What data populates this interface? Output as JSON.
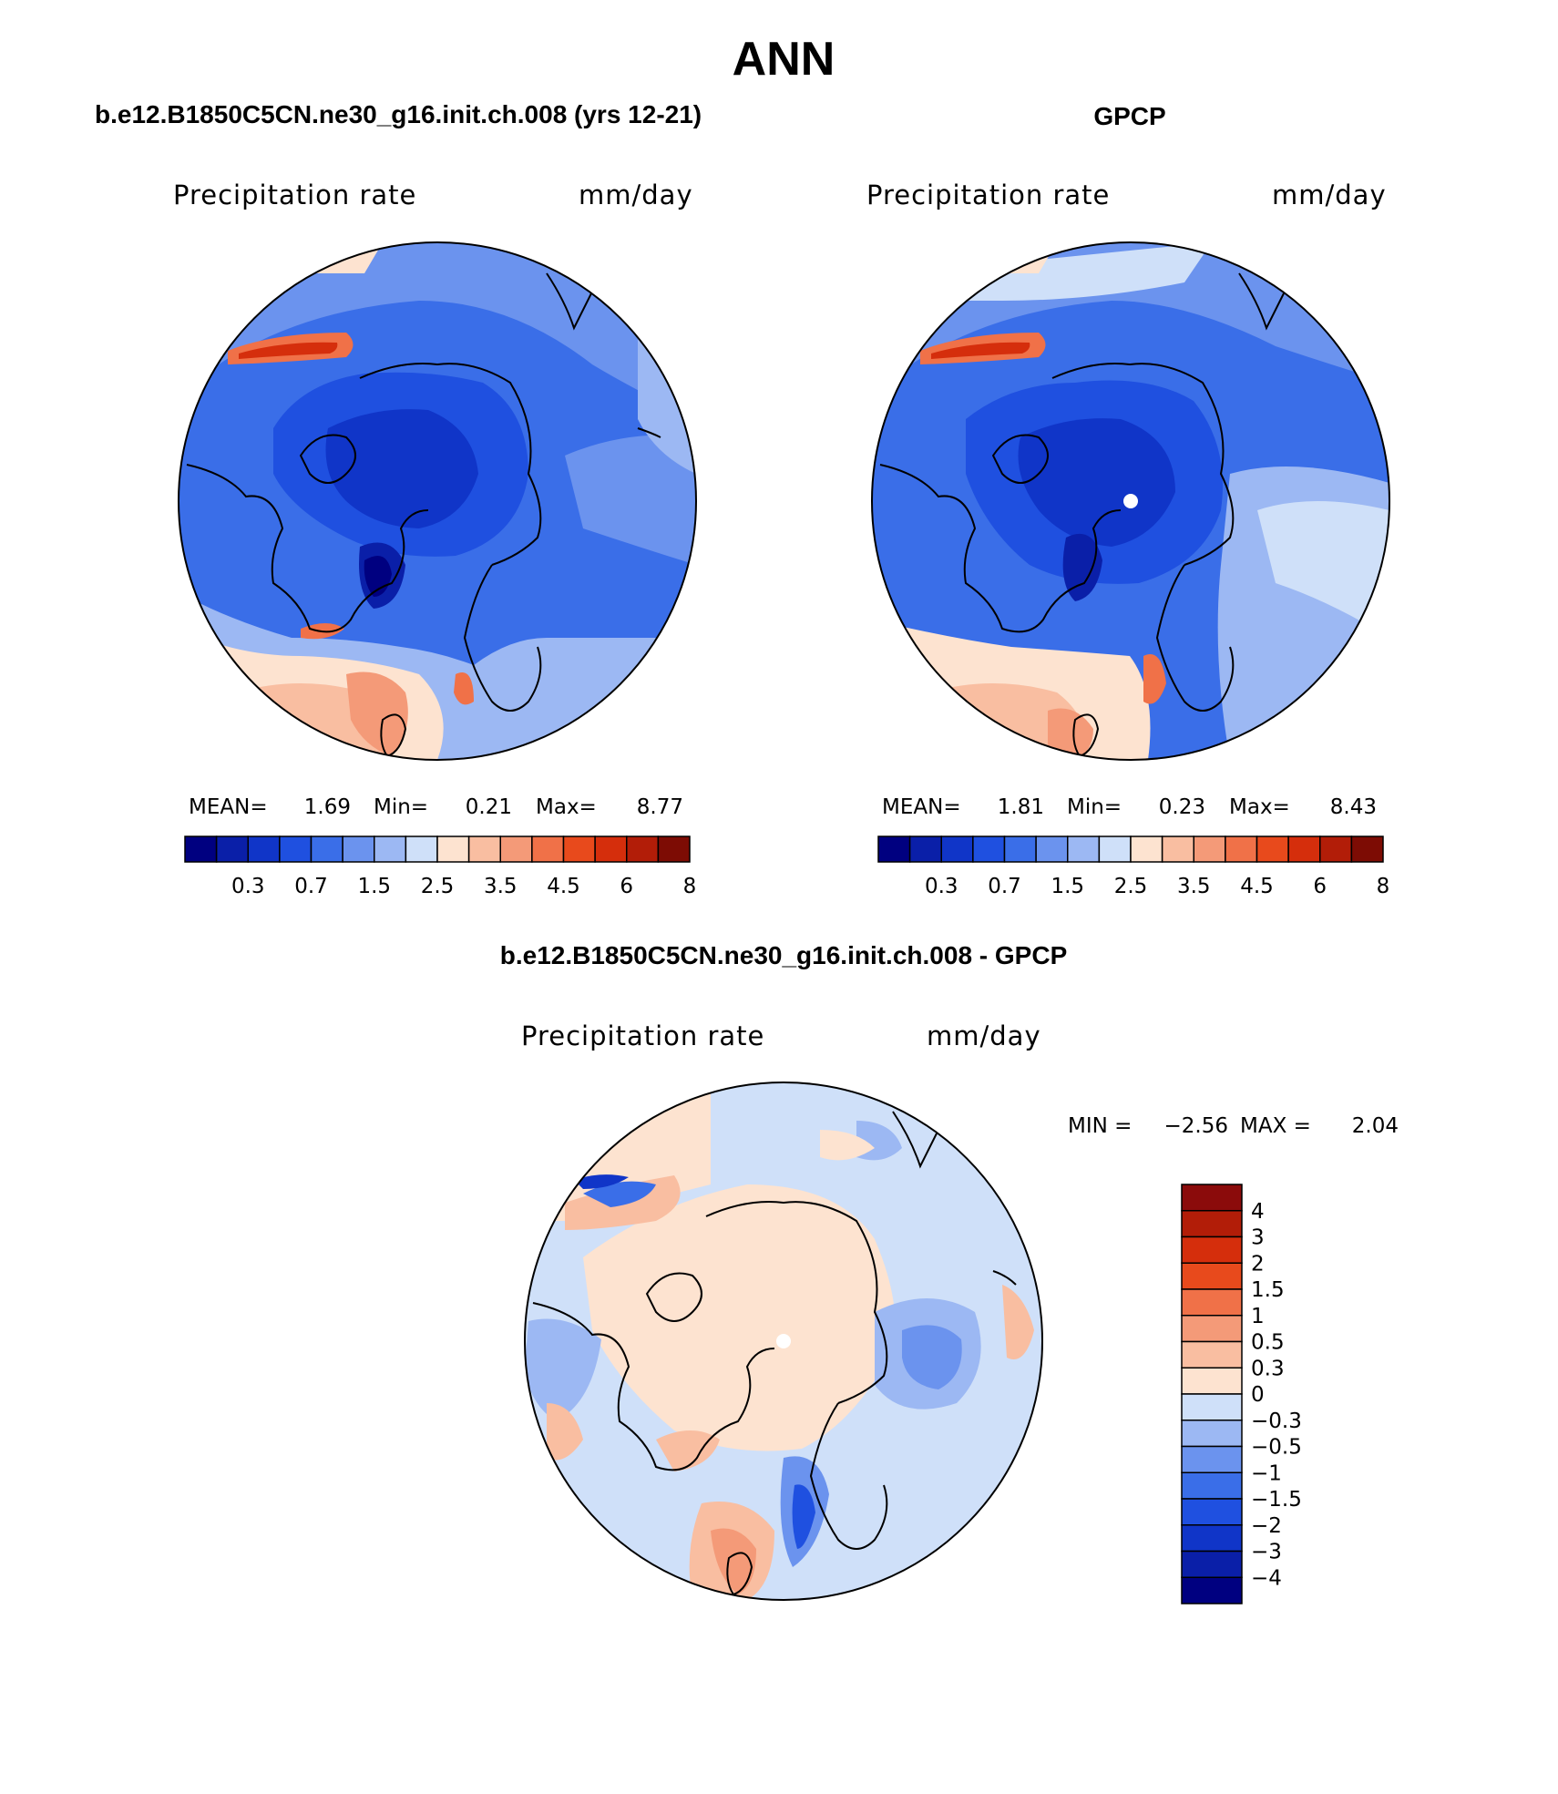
{
  "main_title": "ANN",
  "colors": {
    "abs_scale": [
      "#000080",
      "#0a1fa8",
      "#1035c8",
      "#1f50e0",
      "#3a6ee8",
      "#6b93ee",
      "#9cb8f3",
      "#cfe0f9",
      "#fde3d0",
      "#f9bea1",
      "#f49a78",
      "#f07148",
      "#e84a1c",
      "#d52e0c",
      "#b21d08",
      "#7d0c04"
    ],
    "diff_scale": [
      "#000080",
      "#0a1fa8",
      "#1035c8",
      "#1f50e0",
      "#3a6ee8",
      "#6b93ee",
      "#9cb8f3",
      "#cfe0f9",
      "#fde3d0",
      "#f9bea1",
      "#f49a78",
      "#f07148",
      "#e84a1c",
      "#d52e0c",
      "#b21d08",
      "#8b0b0b"
    ],
    "coast": "#000000"
  },
  "panels": [
    {
      "title": "b.e12.B1850C5CN.ne30_g16.init.ch.008 (yrs 12-21)",
      "variable": "Precipitation rate",
      "units": "mm/day",
      "stats": {
        "mean_label": "MEAN=",
        "mean": "1.69",
        "min_label": "Min=",
        "min": "0.21",
        "max_label": "Max=",
        "max": "8.77"
      },
      "colorbar_labels": [
        "0.3",
        "0.7",
        "1.5",
        "2.5",
        "3.5",
        "4.5",
        "6",
        "8"
      ]
    },
    {
      "title": "GPCP",
      "variable": "Precipitation rate",
      "units": "mm/day",
      "stats": {
        "mean_label": "MEAN=",
        "mean": "1.81",
        "min_label": "Min=",
        "min": "0.23",
        "max_label": "Max=",
        "max": "8.43"
      },
      "colorbar_labels": [
        "0.3",
        "0.7",
        "1.5",
        "2.5",
        "3.5",
        "4.5",
        "6",
        "8"
      ]
    }
  ],
  "diff_panel": {
    "title": "b.e12.B1850C5CN.ne30_g16.init.ch.008 - GPCP",
    "variable": "Precipitation rate",
    "units": "mm/day",
    "min_label": "MIN =",
    "min": "−2.56",
    "max_label": "MAX =",
    "max": "2.04",
    "colorbar_labels": [
      "4",
      "3",
      "2",
      "1.5",
      "1",
      "0.5",
      "0.3",
      "0",
      "−0.3",
      "−0.5",
      "−1",
      "−1.5",
      "−2",
      "−3",
      "−4"
    ]
  }
}
